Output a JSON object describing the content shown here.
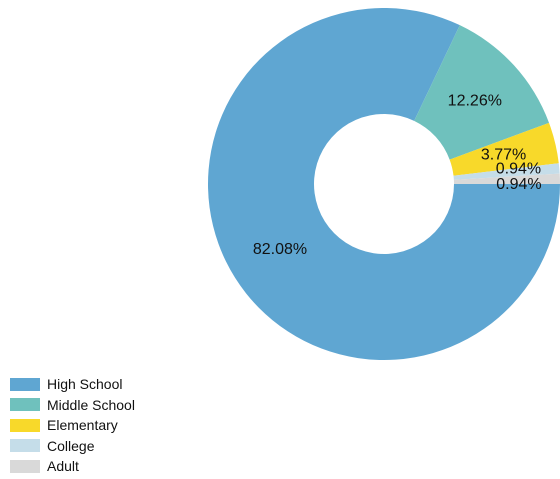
{
  "chart_data": {
    "type": "pie",
    "title": "",
    "donut": true,
    "legend_position": "bottom-left",
    "categories": [
      "High School",
      "Middle School",
      "Elementary",
      "College",
      "Adult"
    ],
    "values": [
      82.08,
      12.26,
      3.77,
      0.94,
      0.94
    ],
    "labels": [
      "82.08%",
      "12.26%",
      "3.77%",
      "0.94%",
      "0.94%"
    ],
    "colors": [
      "#5fa6d2",
      "#6fc1bd",
      "#f8d92a",
      "#c5dde9",
      "#d9d9d9"
    ]
  }
}
